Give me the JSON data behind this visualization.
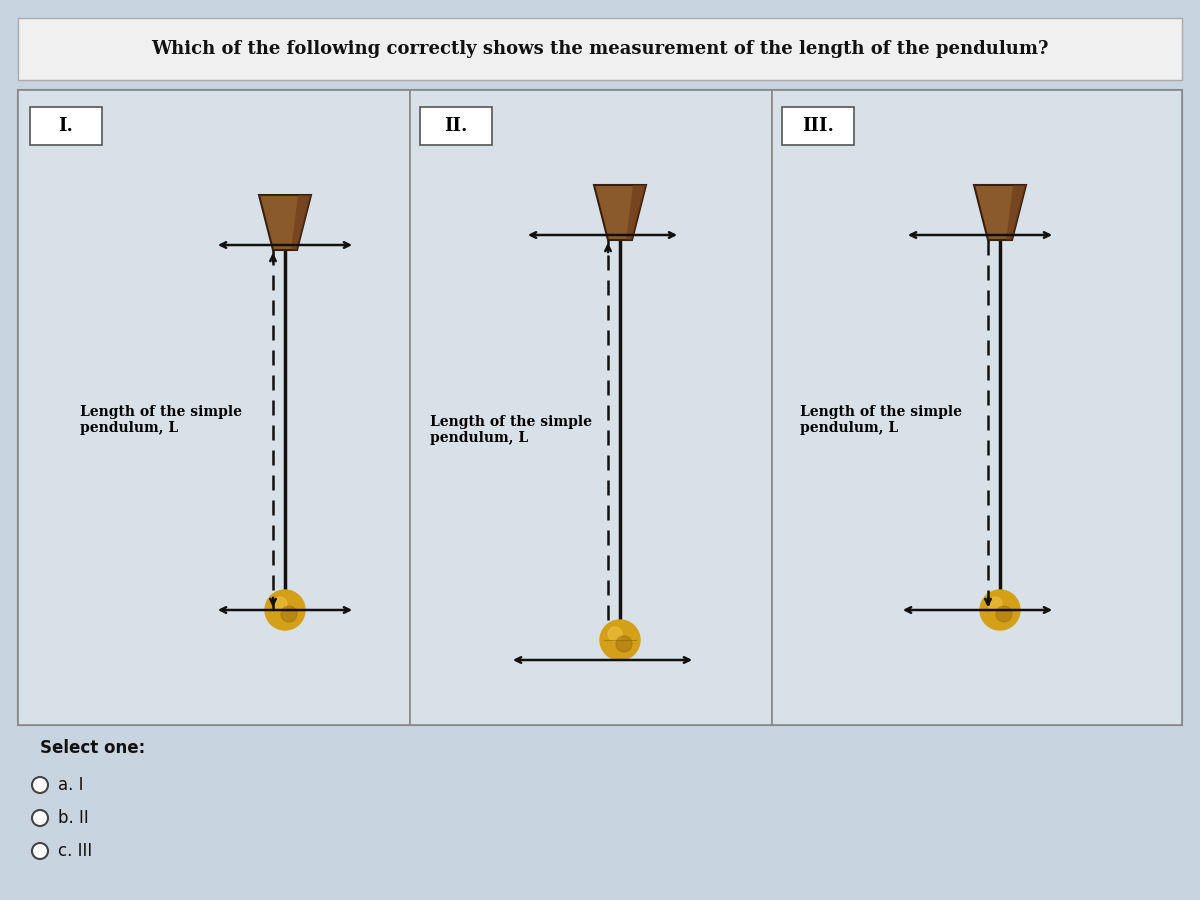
{
  "title": "Which of the following correctly shows the measurement of the length of the pendulum?",
  "title_fontsize": 13,
  "bg_color": "#c8d4e0",
  "content_bg": "#d8e0e8",
  "panel_bg": "#d8e0e8",
  "white": "#ffffff",
  "border_color": "#888888",
  "text_color": "#111111",
  "length_label": "Length of the simple\npendulum, L",
  "select_text": "Select one:",
  "options": [
    "a. I",
    "b. II",
    "c. III"
  ],
  "pivot_face": "#8B5A2B",
  "pivot_shade": "#6B3A1B",
  "bob_gold": "#D4A017",
  "bob_light": "#F0C040",
  "bob_dark": "#A07010",
  "string_color": "#111111",
  "arrow_color": "#111111",
  "roman": [
    "I.",
    "II.",
    "III."
  ]
}
